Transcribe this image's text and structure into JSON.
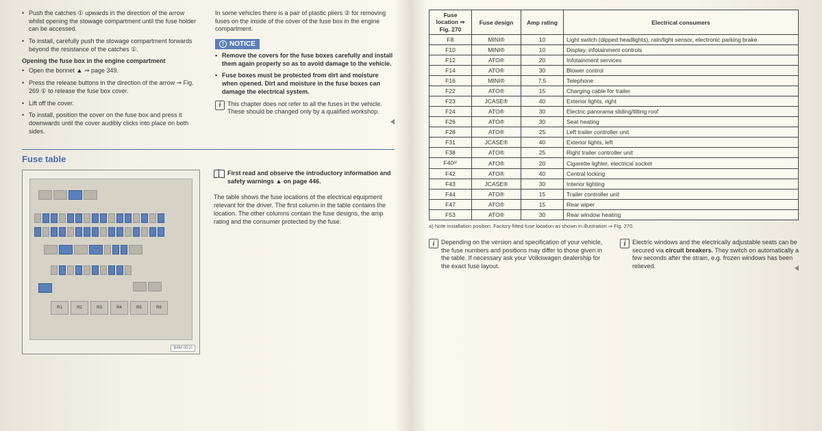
{
  "colors": {
    "accent": "#4a6ca8",
    "fuse_blue": "#5b7fb8",
    "page_bg": "#fbf8f0",
    "border": "#444444"
  },
  "left": {
    "bullets_top": [
      "Push the catches ① upwards in the direction of the arrow whilst opening the stowage compartment until the fuse holder can be accessed.",
      "To install, carefully push the stowage compartment forwards beyond the resistance of the catches ①."
    ],
    "subhead1": "Opening the fuse box in the engine compartment",
    "bullets_mid": [
      "Open the bonnet ▲ ⇒ page 349.",
      "Press the release buttons in the direction of the arrow ⇒ Fig. 269 ① to release the fuse box cover.",
      "Lift off the cover.",
      "To install, position the cover on the fuse box and press it downwards until the cover audibly clicks into place on both sides."
    ],
    "col2_para": "In some vehicles there is a pair of plastic pliers ② for removing fuses on the inside of the cover of the fuse box in the engine compartment.",
    "notice_label": "NOTICE",
    "notice_items": [
      "Remove the covers for the fuse boxes carefully and install them again properly so as to avoid damage to the vehicle.",
      "Fuse boxes must be protected from dirt and moisture when opened. Dirt and moisture in the fuse boxes can damage the electrical system."
    ],
    "info_note": "This chapter does not refer to all the fuses in the vehicle. These should be changed only by a qualified workshop.",
    "section_title": "Fuse table",
    "first_read": "First read and observe the introductory information and safety warnings ▲ on page 446.",
    "table_desc": "The table shows the fuse locations of the electrical equipment relevant for the driver. The first column in the table contains the location. The other columns contain the fuse designs, the amp rating and the consumer protected by the fuse.",
    "diagram_label": "B4M-0010"
  },
  "right": {
    "headers": [
      "Fuse location ⇒ Fig. 270",
      "Fuse design",
      "Amp rating",
      "Electrical consumers"
    ],
    "col_widths": [
      "62px",
      "72px",
      "62px",
      "auto"
    ],
    "rows": [
      [
        "F8",
        "MINI®",
        "10",
        "Light switch (dipped headlights), rain/light sensor, electronic parking brake"
      ],
      [
        "F10",
        "MINI®",
        "10",
        "Display, infotainment controls"
      ],
      [
        "F12",
        "ATO®",
        "20",
        "Infotainment services"
      ],
      [
        "F14",
        "ATO®",
        "30",
        "Blower control"
      ],
      [
        "F16",
        "MINI®",
        "7.5",
        "Telephone"
      ],
      [
        "F22",
        "ATO®",
        "15",
        "Charging cable for trailer"
      ],
      [
        "F23",
        "JCASE®",
        "40",
        "Exterior lights, right"
      ],
      [
        "F24",
        "ATO®",
        "30",
        "Electric panorama sliding/tilting roof"
      ],
      [
        "F26",
        "ATO®",
        "30",
        "Seat heating"
      ],
      [
        "F28",
        "ATO®",
        "25",
        "Left trailer controller unit"
      ],
      [
        "F31",
        "JCASE®",
        "40",
        "Exterior lights, left"
      ],
      [
        "F38",
        "ATO®",
        "25",
        "Right trailer controller unit"
      ],
      [
        "F40ᵃ⁾",
        "ATO®",
        "20",
        "Cigarette lighter, electrical socket"
      ],
      [
        "F42",
        "ATO®",
        "40",
        "Central locking"
      ],
      [
        "F43",
        "JCASE®",
        "30",
        "Interior lighting"
      ],
      [
        "F44",
        "ATO®",
        "15",
        "Trailer controller unit"
      ],
      [
        "F47",
        "ATO®",
        "15",
        "Rear wiper"
      ],
      [
        "F53",
        "ATO®",
        "30",
        "Rear window heating"
      ]
    ],
    "footnote": "a)  Note installation position. Factory-fitted fuse location as shown in illustration ⇒ Fig. 270.",
    "note1": "Depending on the version and specification of your vehicle, the fuse numbers and positions may differ to those given in the table. If necessary ask your Volkswagen dealership for the exact fuse layout.",
    "note2_pre": "Electric windows and the electrically adjustable seats can be secured via ",
    "note2_bold": "circuit breakers.",
    "note2_post": " They switch on automatically a few seconds after the strain, e.g. frozen windows has been relieved."
  }
}
